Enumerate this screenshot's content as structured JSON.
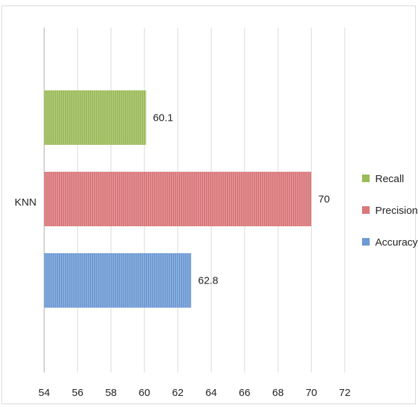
{
  "chart_data": {
    "type": "bar",
    "orientation": "horizontal",
    "categories": [
      "KNN"
    ],
    "series": [
      {
        "name": "Recall",
        "values": [
          60.1
        ],
        "color": "#9bbb59",
        "data_label": "60.1"
      },
      {
        "name": "Precision",
        "values": [
          70
        ],
        "color": "#d9777a",
        "data_label": "70"
      },
      {
        "name": "Accuracy",
        "values": [
          62.8
        ],
        "color": "#6d9ad4",
        "data_label": "62.8"
      }
    ],
    "xlim": [
      54,
      72
    ],
    "xticks": [
      "54",
      "56",
      "58",
      "60",
      "62",
      "64",
      "66",
      "68",
      "70",
      "72"
    ],
    "grid": "vertical",
    "legend": "right",
    "title": "",
    "xlabel": "",
    "ylabel": ""
  }
}
